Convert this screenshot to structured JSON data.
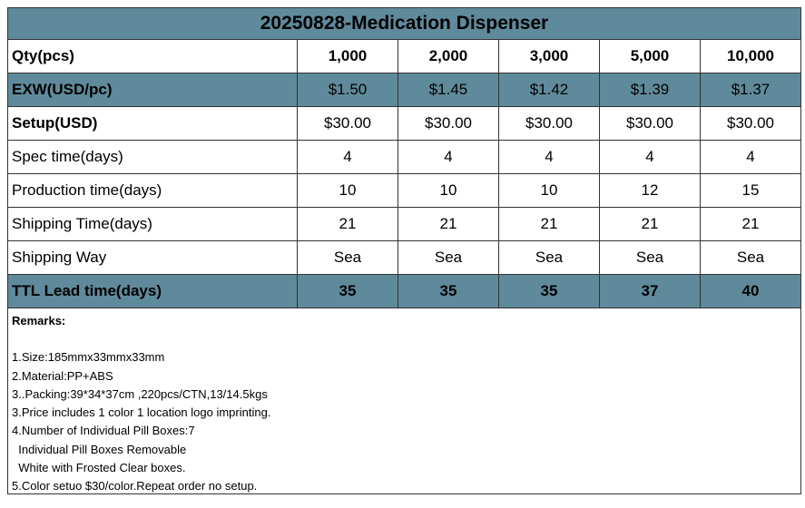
{
  "title": "20250828-Medication Dispenser",
  "table": {
    "rows": [
      {
        "label": "Qty(pcs)",
        "cells": [
          "1,000",
          "2,000",
          "3,000",
          "5,000",
          "10,000"
        ]
      },
      {
        "label": "EXW(USD/pc)",
        "cells": [
          "$1.50",
          "$1.45",
          "$1.42",
          "$1.39",
          "$1.37"
        ]
      },
      {
        "label": "Setup(USD)",
        "cells": [
          "$30.00",
          "$30.00",
          "$30.00",
          "$30.00",
          "$30.00"
        ]
      },
      {
        "label": "Spec time(days)",
        "cells": [
          "4",
          "4",
          "4",
          "4",
          "4"
        ]
      },
      {
        "label": "Production time(days)",
        "cells": [
          "10",
          "10",
          "10",
          "12",
          "15"
        ]
      },
      {
        "label": "Shipping Time(days)",
        "cells": [
          "21",
          "21",
          "21",
          "21",
          "21"
        ]
      },
      {
        "label": "Shipping Way",
        "cells": [
          "Sea",
          "Sea",
          "Sea",
          "Sea",
          "Sea"
        ]
      },
      {
        "label": "TTL Lead time(days)",
        "cells": [
          "35",
          "35",
          "35",
          "37",
          "40"
        ]
      }
    ]
  },
  "remarks": {
    "heading": "Remarks:",
    "lines": [
      "1.Size:185mmx33mmx33mm",
      "2.Material:PP+ABS",
      "3..Packing:39*34*37cm ,220pcs/CTN,13/14.5kgs",
      "3.Price includes 1 color 1 location logo imprinting.",
      "4.Number of Individual Pill Boxes:7",
      "  Individual Pill Boxes Removable",
      "  White with Frosted Clear boxes.",
      "5.Color setuo $30/color.Repeat order no setup."
    ]
  }
}
